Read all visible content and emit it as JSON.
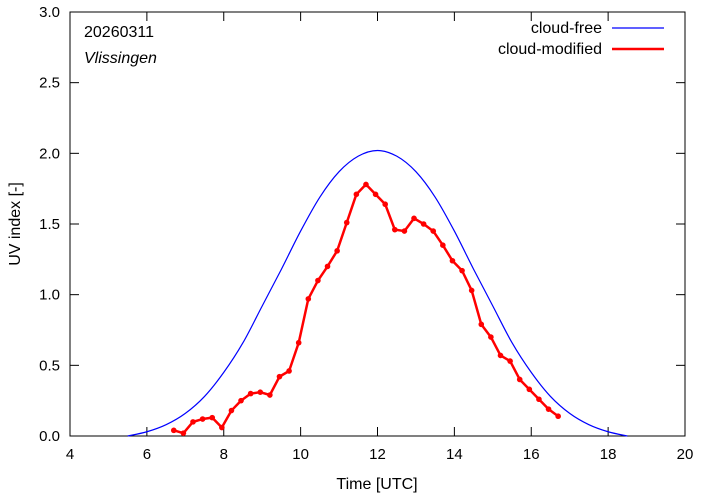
{
  "chart_data": {
    "type": "line",
    "title": "",
    "date": "20260311",
    "location": "Vlissingen",
    "xlabel": "Time  [UTC]",
    "ylabel": "UV index  [-]",
    "xlim": [
      4,
      20
    ],
    "ylim": [
      0,
      3
    ],
    "xticks": [
      4,
      6,
      8,
      10,
      12,
      14,
      16,
      18,
      20
    ],
    "yticks": [
      0.0,
      0.5,
      1.0,
      1.5,
      2.0,
      2.5,
      3.0
    ],
    "xtick_labels": [
      "4",
      "6",
      "8",
      "10",
      "12",
      "14",
      "16",
      "18",
      "20"
    ],
    "ytick_labels": [
      "0.0",
      "0.5",
      "1.0",
      "1.5",
      "2.0",
      "2.5",
      "3.0"
    ],
    "grid": false,
    "legend_position": "top-right",
    "series": [
      {
        "name": "cloud-free",
        "color": "#0000ff",
        "style": "line",
        "x": [
          5.5,
          6.0,
          6.5,
          7.0,
          7.5,
          8.0,
          8.5,
          9.0,
          9.5,
          10.0,
          10.5,
          11.0,
          11.5,
          12.0,
          12.5,
          13.0,
          13.5,
          14.0,
          14.5,
          15.0,
          15.5,
          16.0,
          16.5,
          17.0,
          17.5,
          18.0,
          18.5
        ],
        "y": [
          0.0,
          0.03,
          0.08,
          0.16,
          0.28,
          0.45,
          0.66,
          0.92,
          1.18,
          1.45,
          1.69,
          1.87,
          1.98,
          2.02,
          1.98,
          1.87,
          1.69,
          1.45,
          1.18,
          0.92,
          0.66,
          0.45,
          0.28,
          0.16,
          0.08,
          0.03,
          0.0
        ]
      },
      {
        "name": "cloud-modified",
        "color": "#ff0000",
        "style": "line-points",
        "x": [
          6.7,
          6.95,
          7.2,
          7.45,
          7.7,
          7.95,
          8.2,
          8.45,
          8.7,
          8.95,
          9.2,
          9.45,
          9.7,
          9.95,
          10.2,
          10.45,
          10.7,
          10.95,
          11.2,
          11.45,
          11.7,
          11.95,
          12.2,
          12.45,
          12.7,
          12.95,
          13.2,
          13.45,
          13.7,
          13.95,
          14.2,
          14.45,
          14.7,
          14.95,
          15.2,
          15.45,
          15.7,
          15.95,
          16.2,
          16.45,
          16.7
        ],
        "y": [
          0.04,
          0.02,
          0.1,
          0.12,
          0.13,
          0.06,
          0.18,
          0.25,
          0.3,
          0.31,
          0.29,
          0.42,
          0.46,
          0.66,
          0.97,
          1.1,
          1.2,
          1.31,
          1.51,
          1.71,
          1.78,
          1.71,
          1.64,
          1.46,
          1.45,
          1.54,
          1.5,
          1.45,
          1.35,
          1.24,
          1.17,
          1.03,
          0.79,
          0.7,
          0.57,
          0.53,
          0.4,
          0.33,
          0.26,
          0.19,
          0.14
        ]
      }
    ]
  }
}
